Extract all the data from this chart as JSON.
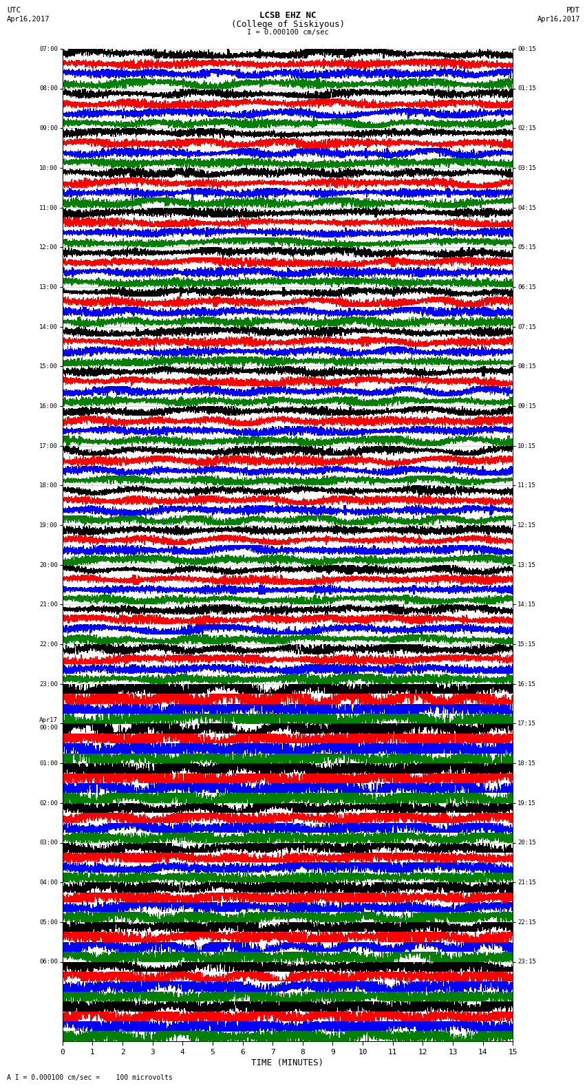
{
  "title_line1": "LCSB EHZ NC",
  "title_line2": "(College of Siskiyous)",
  "scale_label": "I = 0.000100 cm/sec",
  "bottom_label": "A I = 0.000100 cm/sec =    100 microvolts",
  "xlabel": "TIME (MINUTES)",
  "utc_times": [
    "07:00",
    "",
    "",
    "",
    "08:00",
    "",
    "",
    "",
    "09:00",
    "",
    "",
    "",
    "10:00",
    "",
    "",
    "",
    "11:00",
    "",
    "",
    "",
    "12:00",
    "",
    "",
    "",
    "13:00",
    "",
    "",
    "",
    "14:00",
    "",
    "",
    "",
    "15:00",
    "",
    "",
    "",
    "16:00",
    "",
    "",
    "",
    "17:00",
    "",
    "",
    "",
    "18:00",
    "",
    "",
    "",
    "19:00",
    "",
    "",
    "",
    "20:00",
    "",
    "",
    "",
    "21:00",
    "",
    "",
    "",
    "22:00",
    "",
    "",
    "",
    "23:00",
    "",
    "",
    "",
    "Apr17\n00:00",
    "",
    "",
    "",
    "01:00",
    "",
    "",
    "",
    "02:00",
    "",
    "",
    "",
    "03:00",
    "",
    "",
    "",
    "04:00",
    "",
    "",
    "",
    "05:00",
    "",
    "",
    "",
    "06:00",
    ""
  ],
  "pdt_times": [
    "00:15",
    "",
    "",
    "",
    "01:15",
    "",
    "",
    "",
    "02:15",
    "",
    "",
    "",
    "03:15",
    "",
    "",
    "",
    "04:15",
    "",
    "",
    "",
    "05:15",
    "",
    "",
    "",
    "06:15",
    "",
    "",
    "",
    "07:15",
    "",
    "",
    "",
    "08:15",
    "",
    "",
    "",
    "09:15",
    "",
    "",
    "",
    "10:15",
    "",
    "",
    "",
    "11:15",
    "",
    "",
    "",
    "12:15",
    "",
    "",
    "",
    "13:15",
    "",
    "",
    "",
    "14:15",
    "",
    "",
    "",
    "15:15",
    "",
    "",
    "",
    "16:15",
    "",
    "",
    "",
    "17:15",
    "",
    "",
    "",
    "18:15",
    "",
    "",
    "",
    "19:15",
    "",
    "",
    "",
    "20:15",
    "",
    "",
    "",
    "21:15",
    "",
    "",
    "",
    "22:15",
    "",
    "",
    "",
    "23:15",
    ""
  ],
  "colors": [
    "black",
    "red",
    "blue",
    "green"
  ],
  "n_rows": 100,
  "n_minutes": 15,
  "seed": 42
}
